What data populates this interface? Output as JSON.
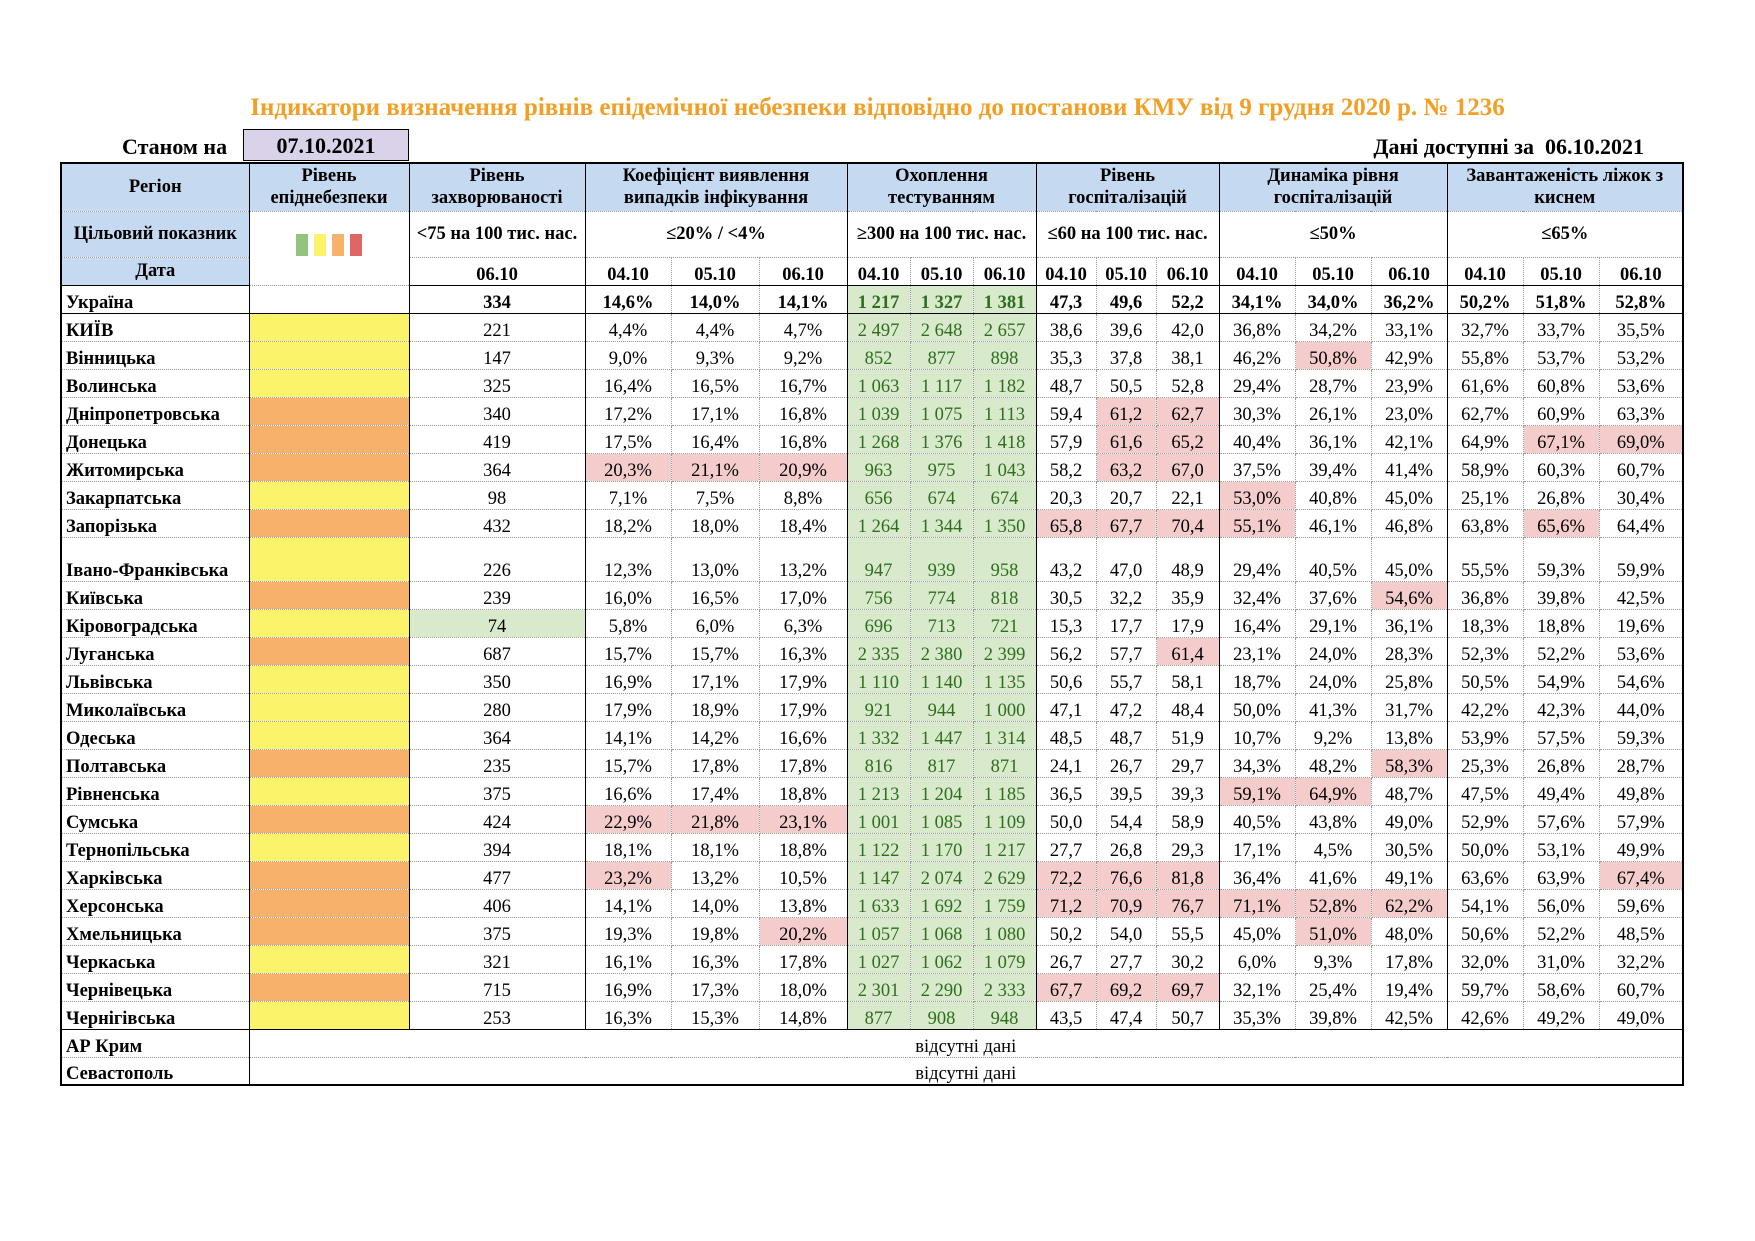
{
  "title": "Індикатори визначення рівнів епідемічної небезпеки відповідно до постанови КМУ від 9 грудня 2020 р. № 1236",
  "as_of_label": "Станом на",
  "as_of_date": "07.10.2021",
  "available_label": "Дані доступні за",
  "available_date": "06.10.2021",
  "headers": {
    "region": "Регіон",
    "level": "Рівень епіднебезпеки",
    "incidence": "Рівень захворюваності",
    "detection": "Коефіцієнт виявлення випадків інфікування",
    "testing": "Охоплення тестуванням",
    "hosp": "Рівень госпіталізацій",
    "hosp_dyn": "Динаміка рівня госпіталізацій",
    "oxygen": "Завантаженість ліжок з киснем"
  },
  "targets": {
    "label": "Цільовий показник",
    "incidence": "<75 на 100 тис. нас.",
    "detection": "≤20% / <4%",
    "testing": "≥300 на 100 тис. нас.",
    "hosp": "≤60 на 100 тис. нас.",
    "hosp_dyn": "≤50%",
    "oxygen": "≤65%"
  },
  "legend_colors": [
    "#93C47D",
    "#FBF46B",
    "#F6B26B",
    "#E06666"
  ],
  "date_label": "Дата",
  "dates": {
    "incidence": "06.10",
    "triple": [
      "04.10",
      "05.10",
      "06.10"
    ]
  },
  "ukraine": {
    "name": "Україна",
    "incidence": "334",
    "detection": [
      "14,6%",
      "14,0%",
      "14,1%"
    ],
    "testing": [
      "1 217",
      "1 327",
      "1 381"
    ],
    "hosp": [
      "47,3",
      "49,6",
      "52,2"
    ],
    "hosp_dyn": [
      "34,1%",
      "34,0%",
      "36,2%"
    ],
    "oxygen": [
      "50,2%",
      "51,8%",
      "52,8%"
    ]
  },
  "regions": [
    {
      "name": "КИЇВ",
      "level": "yellow",
      "inc": "221",
      "det": [
        "4,4%",
        "4,4%",
        "4,7%"
      ],
      "tst": [
        "2 497",
        "2 648",
        "2 657"
      ],
      "hsp": [
        "38,6",
        "39,6",
        "42,0"
      ],
      "dyn": [
        "36,8%",
        "34,2%",
        "33,1%"
      ],
      "oxy": [
        "32,7%",
        "33,7%",
        "35,5%"
      ]
    },
    {
      "name": "Вінницька",
      "level": "yellow",
      "inc": "147",
      "det": [
        "9,0%",
        "9,3%",
        "9,2%"
      ],
      "tst": [
        "852",
        "877",
        "898"
      ],
      "hsp": [
        "35,3",
        "37,8",
        "38,1"
      ],
      "dyn": [
        "46,2%",
        "50,8%",
        "42,9%"
      ],
      "oxy": [
        "55,8%",
        "53,7%",
        "53,2%"
      ]
    },
    {
      "name": "Волинська",
      "level": "yellow",
      "inc": "325",
      "det": [
        "16,4%",
        "16,5%",
        "16,7%"
      ],
      "tst": [
        "1 063",
        "1 117",
        "1 182"
      ],
      "hsp": [
        "48,7",
        "50,5",
        "52,8"
      ],
      "dyn": [
        "29,4%",
        "28,7%",
        "23,9%"
      ],
      "oxy": [
        "61,6%",
        "60,8%",
        "53,6%"
      ]
    },
    {
      "name": "Дніпропетровська",
      "level": "orange",
      "inc": "340",
      "det": [
        "17,2%",
        "17,1%",
        "16,8%"
      ],
      "tst": [
        "1 039",
        "1 075",
        "1 113"
      ],
      "hsp": [
        "59,4",
        "61,2",
        "62,7"
      ],
      "dyn": [
        "30,3%",
        "26,1%",
        "23,0%"
      ],
      "oxy": [
        "62,7%",
        "60,9%",
        "63,3%"
      ]
    },
    {
      "name": "Донецька",
      "level": "orange",
      "inc": "419",
      "det": [
        "17,5%",
        "16,4%",
        "16,8%"
      ],
      "tst": [
        "1 268",
        "1 376",
        "1 418"
      ],
      "hsp": [
        "57,9",
        "61,6",
        "65,2"
      ],
      "dyn": [
        "40,4%",
        "36,1%",
        "42,1%"
      ],
      "oxy": [
        "64,9%",
        "67,1%",
        "69,0%"
      ]
    },
    {
      "name": "Житомирська",
      "level": "orange",
      "inc": "364",
      "det": [
        "20,3%",
        "21,1%",
        "20,9%"
      ],
      "tst": [
        "963",
        "975",
        "1 043"
      ],
      "hsp": [
        "58,2",
        "63,2",
        "67,0"
      ],
      "dyn": [
        "37,5%",
        "39,4%",
        "41,4%"
      ],
      "oxy": [
        "58,9%",
        "60,3%",
        "60,7%"
      ]
    },
    {
      "name": "Закарпатська",
      "level": "yellow",
      "inc": "98",
      "det": [
        "7,1%",
        "7,5%",
        "8,8%"
      ],
      "tst": [
        "656",
        "674",
        "674"
      ],
      "hsp": [
        "20,3",
        "20,7",
        "22,1"
      ],
      "dyn": [
        "53,0%",
        "40,8%",
        "45,0%"
      ],
      "oxy": [
        "25,1%",
        "26,8%",
        "30,4%"
      ]
    },
    {
      "name": "Запорізька",
      "level": "orange",
      "inc": "432",
      "det": [
        "18,2%",
        "18,0%",
        "18,4%"
      ],
      "tst": [
        "1 264",
        "1 344",
        "1 350"
      ],
      "hsp": [
        "65,8",
        "67,7",
        "70,4"
      ],
      "dyn": [
        "55,1%",
        "46,1%",
        "46,8%"
      ],
      "oxy": [
        "63,8%",
        "65,6%",
        "64,4%"
      ]
    },
    {
      "name": "Івано-Франківська",
      "level": "yellow",
      "inc": "226",
      "det": [
        "12,3%",
        "13,0%",
        "13,2%"
      ],
      "tst": [
        "947",
        "939",
        "958"
      ],
      "hsp": [
        "43,2",
        "47,0",
        "48,9"
      ],
      "dyn": [
        "29,4%",
        "40,5%",
        "45,0%"
      ],
      "oxy": [
        "55,5%",
        "59,3%",
        "59,9%"
      ]
    },
    {
      "name": "Київська",
      "level": "orange",
      "inc": "239",
      "det": [
        "16,0%",
        "16,5%",
        "17,0%"
      ],
      "tst": [
        "756",
        "774",
        "818"
      ],
      "hsp": [
        "30,5",
        "32,2",
        "35,9"
      ],
      "dyn": [
        "32,4%",
        "37,6%",
        "54,6%"
      ],
      "oxy": [
        "36,8%",
        "39,8%",
        "42,5%"
      ]
    },
    {
      "name": "Кіровоградська",
      "level": "yellow",
      "inc": "74",
      "det": [
        "5,8%",
        "6,0%",
        "6,3%"
      ],
      "tst": [
        "696",
        "713",
        "721"
      ],
      "hsp": [
        "15,3",
        "17,7",
        "17,9"
      ],
      "dyn": [
        "16,4%",
        "29,1%",
        "36,1%"
      ],
      "oxy": [
        "18,3%",
        "18,8%",
        "19,6%"
      ]
    },
    {
      "name": "Луганська",
      "level": "orange",
      "inc": "687",
      "det": [
        "15,7%",
        "15,7%",
        "16,3%"
      ],
      "tst": [
        "2 335",
        "2 380",
        "2 399"
      ],
      "hsp": [
        "56,2",
        "57,7",
        "61,4"
      ],
      "dyn": [
        "23,1%",
        "24,0%",
        "28,3%"
      ],
      "oxy": [
        "52,3%",
        "52,2%",
        "53,6%"
      ]
    },
    {
      "name": "Львівська",
      "level": "yellow",
      "inc": "350",
      "det": [
        "16,9%",
        "17,1%",
        "17,9%"
      ],
      "tst": [
        "1 110",
        "1 140",
        "1 135"
      ],
      "hsp": [
        "50,6",
        "55,7",
        "58,1"
      ],
      "dyn": [
        "18,7%",
        "24,0%",
        "25,8%"
      ],
      "oxy": [
        "50,5%",
        "54,9%",
        "54,6%"
      ]
    },
    {
      "name": "Миколаївська",
      "level": "yellow",
      "inc": "280",
      "det": [
        "17,9%",
        "18,9%",
        "17,9%"
      ],
      "tst": [
        "921",
        "944",
        "1 000"
      ],
      "hsp": [
        "47,1",
        "47,2",
        "48,4"
      ],
      "dyn": [
        "50,0%",
        "41,3%",
        "31,7%"
      ],
      "oxy": [
        "42,2%",
        "42,3%",
        "44,0%"
      ]
    },
    {
      "name": "Одеська",
      "level": "yellow",
      "inc": "364",
      "det": [
        "14,1%",
        "14,2%",
        "16,6%"
      ],
      "tst": [
        "1 332",
        "1 447",
        "1 314"
      ],
      "hsp": [
        "48,5",
        "48,7",
        "51,9"
      ],
      "dyn": [
        "10,7%",
        "9,2%",
        "13,8%"
      ],
      "oxy": [
        "53,9%",
        "57,5%",
        "59,3%"
      ]
    },
    {
      "name": "Полтавська",
      "level": "orange",
      "inc": "235",
      "det": [
        "15,7%",
        "17,8%",
        "17,8%"
      ],
      "tst": [
        "816",
        "817",
        "871"
      ],
      "hsp": [
        "24,1",
        "26,7",
        "29,7"
      ],
      "dyn": [
        "34,3%",
        "48,2%",
        "58,3%"
      ],
      "oxy": [
        "25,3%",
        "26,8%",
        "28,7%"
      ]
    },
    {
      "name": "Рівненська",
      "level": "yellow",
      "inc": "375",
      "det": [
        "16,6%",
        "17,4%",
        "18,8%"
      ],
      "tst": [
        "1 213",
        "1 204",
        "1 185"
      ],
      "hsp": [
        "36,5",
        "39,5",
        "39,3"
      ],
      "dyn": [
        "59,1%",
        "64,9%",
        "48,7%"
      ],
      "oxy": [
        "47,5%",
        "49,4%",
        "49,8%"
      ]
    },
    {
      "name": "Сумська",
      "level": "orange",
      "inc": "424",
      "det": [
        "22,9%",
        "21,8%",
        "23,1%"
      ],
      "tst": [
        "1 001",
        "1 085",
        "1 109"
      ],
      "hsp": [
        "50,0",
        "54,4",
        "58,9"
      ],
      "dyn": [
        "40,5%",
        "43,8%",
        "49,0%"
      ],
      "oxy": [
        "52,9%",
        "57,6%",
        "57,9%"
      ]
    },
    {
      "name": "Тернопільська",
      "level": "yellow",
      "inc": "394",
      "det": [
        "18,1%",
        "18,1%",
        "18,8%"
      ],
      "tst": [
        "1 122",
        "1 170",
        "1 217"
      ],
      "hsp": [
        "27,7",
        "26,8",
        "29,3"
      ],
      "dyn": [
        "17,1%",
        "4,5%",
        "30,5%"
      ],
      "oxy": [
        "50,0%",
        "53,1%",
        "49,9%"
      ]
    },
    {
      "name": "Харківська",
      "level": "orange",
      "inc": "477",
      "det": [
        "23,2%",
        "13,2%",
        "10,5%"
      ],
      "tst": [
        "1 147",
        "2 074",
        "2 629"
      ],
      "hsp": [
        "72,2",
        "76,6",
        "81,8"
      ],
      "dyn": [
        "36,4%",
        "41,6%",
        "49,1%"
      ],
      "oxy": [
        "63,6%",
        "63,9%",
        "67,4%"
      ]
    },
    {
      "name": "Херсонська",
      "level": "orange",
      "inc": "406",
      "det": [
        "14,1%",
        "14,0%",
        "13,8%"
      ],
      "tst": [
        "1 633",
        "1 692",
        "1 759"
      ],
      "hsp": [
        "71,2",
        "70,9",
        "76,7"
      ],
      "dyn": [
        "71,1%",
        "52,8%",
        "62,2%"
      ],
      "oxy": [
        "54,1%",
        "56,0%",
        "59,6%"
      ]
    },
    {
      "name": "Хмельницька",
      "level": "orange",
      "inc": "375",
      "det": [
        "19,3%",
        "19,8%",
        "20,2%"
      ],
      "tst": [
        "1 057",
        "1 068",
        "1 080"
      ],
      "hsp": [
        "50,2",
        "54,0",
        "55,5"
      ],
      "dyn": [
        "45,0%",
        "51,0%",
        "48,0%"
      ],
      "oxy": [
        "50,6%",
        "52,2%",
        "48,5%"
      ]
    },
    {
      "name": "Черкаська",
      "level": "yellow",
      "inc": "321",
      "det": [
        "16,1%",
        "16,3%",
        "17,8%"
      ],
      "tst": [
        "1 027",
        "1 062",
        "1 079"
      ],
      "hsp": [
        "26,7",
        "27,7",
        "30,2"
      ],
      "dyn": [
        "6,0%",
        "9,3%",
        "17,8%"
      ],
      "oxy": [
        "32,0%",
        "31,0%",
        "32,2%"
      ]
    },
    {
      "name": "Чернівецька",
      "level": "orange",
      "inc": "715",
      "det": [
        "16,9%",
        "17,3%",
        "18,0%"
      ],
      "tst": [
        "2 301",
        "2 290",
        "2 333"
      ],
      "hsp": [
        "67,7",
        "69,2",
        "69,7"
      ],
      "dyn": [
        "32,1%",
        "25,4%",
        "19,4%"
      ],
      "oxy": [
        "59,7%",
        "58,6%",
        "60,7%"
      ]
    },
    {
      "name": "Чернігівська",
      "level": "yellow",
      "inc": "253",
      "det": [
        "16,3%",
        "15,3%",
        "14,8%"
      ],
      "tst": [
        "877",
        "908",
        "948"
      ],
      "hsp": [
        "43,5",
        "47,4",
        "50,7"
      ],
      "dyn": [
        "35,3%",
        "39,8%",
        "42,5%"
      ],
      "oxy": [
        "42,6%",
        "49,2%",
        "49,0%"
      ]
    }
  ],
  "no_data_regions": [
    {
      "name": "АР Крим",
      "text": "відсутні дані"
    },
    {
      "name": "Севастополь",
      "text": "відсутні дані"
    }
  ]
}
